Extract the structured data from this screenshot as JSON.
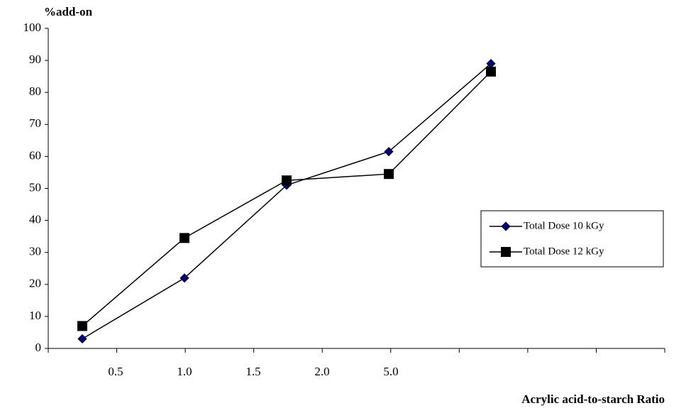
{
  "chart_data": {
    "type": "line",
    "y_label": "%add-on",
    "x_label": "Acrylic acid-to-starch Ratio",
    "categories": [
      "0.5",
      "1.0",
      "1.5",
      "2.0",
      "5.0"
    ],
    "series": [
      {
        "name": "Total Dose 10 kGy",
        "color": "#000080",
        "marker": "diamond",
        "values": [
          3,
          22,
          51,
          61.5,
          89
        ]
      },
      {
        "name": "Total Dose 12 kGy",
        "color": "#000000",
        "marker": "square",
        "values": [
          7,
          34.5,
          52.5,
          54.5,
          86.5
        ]
      }
    ],
    "ylim": [
      0,
      100
    ],
    "yticks": [
      0,
      10,
      20,
      30,
      40,
      50,
      60,
      70,
      80,
      90,
      100
    ],
    "legend": "right"
  }
}
